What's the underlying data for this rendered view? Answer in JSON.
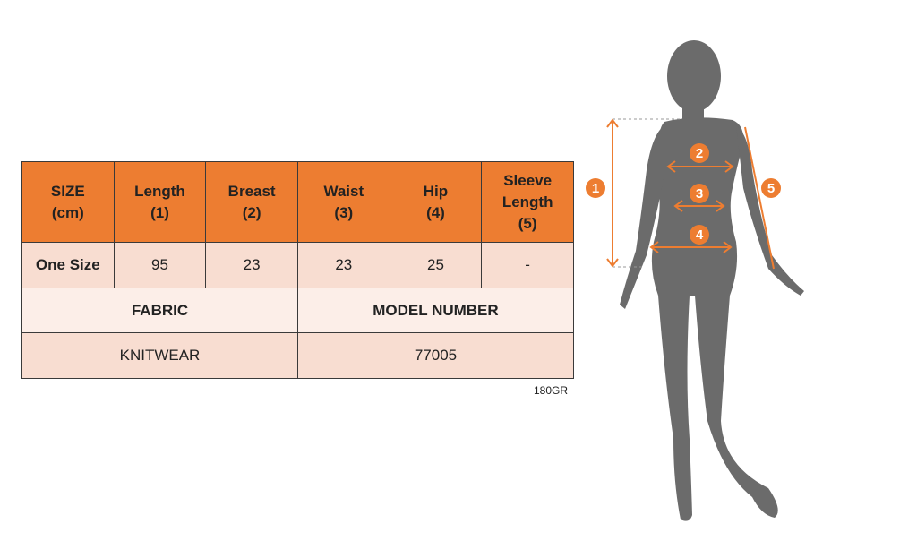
{
  "table": {
    "headers": [
      "SIZE\n(cm)",
      "Length\n(1)",
      "Breast\n(2)",
      "Waist\n(3)",
      "Hip\n(4)",
      "Sleeve\nLength\n(5)"
    ],
    "row": [
      "One Size",
      "95",
      "23",
      "23",
      "25",
      "-"
    ],
    "fabric_label": "FABRIC",
    "model_label": "MODEL NUMBER",
    "fabric_value": "KNITWEAR",
    "model_value": "77005"
  },
  "note": "180GR",
  "figure": {
    "markers": [
      "1",
      "2",
      "3",
      "4",
      "5"
    ],
    "accent": "#ED7D31",
    "silhouette": "#6B6B6B"
  },
  "colors": {
    "header": "#ED7D31",
    "row": "#F8DDD1",
    "row_light": "#FCEEE8"
  }
}
